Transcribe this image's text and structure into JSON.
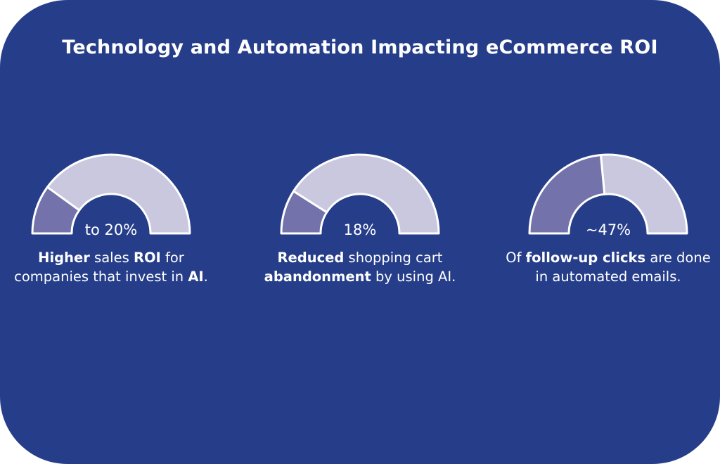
{
  "title": "Technology and Automation Impacting eCommerce ROI",
  "colors": {
    "background": "#263e8a",
    "gauge_track": "#c9c8df",
    "gauge_fill": "#7372ab",
    "outline": "#ffffff",
    "text": "#ffffff"
  },
  "chart_data": {
    "type": "gauge",
    "gauges": [
      {
        "value_label": "to 20%",
        "value": 20,
        "max": 100,
        "caption": [
          {
            "text": "Higher",
            "bold": true
          },
          {
            "text": " sales ",
            "bold": false
          },
          {
            "text": "ROI",
            "bold": true
          },
          {
            "text": " for companies that invest in ",
            "bold": false
          },
          {
            "text": "AI",
            "bold": true
          },
          {
            "text": ".",
            "bold": false
          }
        ]
      },
      {
        "value_label": "18%",
        "value": 18,
        "max": 100,
        "caption": [
          {
            "text": "Reduced",
            "bold": true
          },
          {
            "text": " shopping cart ",
            "bold": false
          },
          {
            "text": "abandonment",
            "bold": true
          },
          {
            "text": " by using AI.",
            "bold": false
          }
        ]
      },
      {
        "value_label": "~47%",
        "value": 47,
        "max": 100,
        "caption": [
          {
            "text": "Of ",
            "bold": false
          },
          {
            "text": "follow-up clicks",
            "bold": true
          },
          {
            "text": " are done in automated emails.",
            "bold": false
          }
        ]
      }
    ]
  }
}
